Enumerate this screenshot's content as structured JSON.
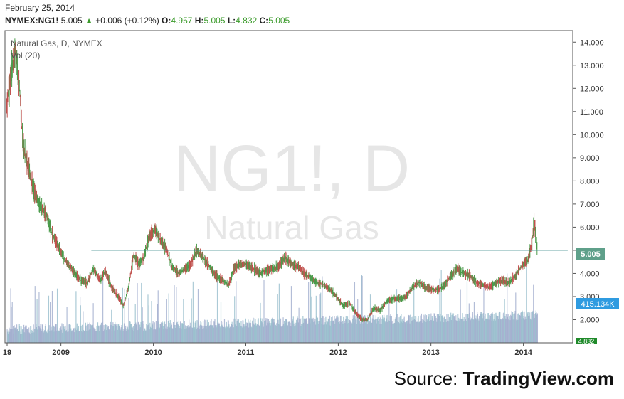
{
  "header": {
    "date": "February 25, 2014",
    "symbol": "NYMEX:NG1!",
    "last": "5.005",
    "change": "+0.006 (+0.12%)",
    "open_label": "O:",
    "open": "4.957",
    "high_label": "H:",
    "high": "5.005",
    "low_label": "L:",
    "low": "4.832",
    "close_label": "C:",
    "close": "5.005",
    "colors": {
      "up": "#3a9a2a"
    }
  },
  "chart_data": {
    "type": "candlestick",
    "title": "Natural Gas, D, NYMEX",
    "indicator_label": "Vol (20)",
    "watermark_symbol": "NG1!, D",
    "watermark_name": "Natural Gas",
    "y_ticks": [
      "2.000",
      "3.000",
      "4.000",
      "5.000",
      "6.000",
      "7.000",
      "8.000",
      "9.000",
      "10.000",
      "11.000",
      "12.000",
      "13.000",
      "14.000"
    ],
    "x_ticks": [
      "19",
      "2009",
      "2010",
      "2011",
      "2012",
      "2013",
      "2014"
    ],
    "ylim": [
      1.0,
      14.5
    ],
    "price_path": [
      [
        "2008-06-01",
        11.2
      ],
      [
        "2008-06-20",
        12.8
      ],
      [
        "2008-07-05",
        13.7
      ],
      [
        "2008-07-20",
        12.2
      ],
      [
        "2008-08-05",
        9.5
      ],
      [
        "2008-08-25",
        8.6
      ],
      [
        "2008-09-15",
        7.6
      ],
      [
        "2008-10-10",
        6.9
      ],
      [
        "2008-11-05",
        6.5
      ],
      [
        "2008-12-01",
        5.6
      ],
      [
        "2008-12-25",
        5.1
      ],
      [
        "2009-01-15",
        4.6
      ],
      [
        "2009-02-05",
        4.3
      ],
      [
        "2009-02-25",
        4.0
      ],
      [
        "2009-03-20",
        3.7
      ],
      [
        "2009-04-15",
        3.6
      ],
      [
        "2009-05-10",
        4.2
      ],
      [
        "2009-06-05",
        3.7
      ],
      [
        "2009-06-25",
        4.1
      ],
      [
        "2009-07-20",
        3.4
      ],
      [
        "2009-08-15",
        3.0
      ],
      [
        "2009-09-05",
        2.6
      ],
      [
        "2009-09-25",
        3.4
      ],
      [
        "2009-10-15",
        4.8
      ],
      [
        "2009-11-05",
        4.4
      ],
      [
        "2009-11-25",
        4.7
      ],
      [
        "2009-12-15",
        5.6
      ],
      [
        "2010-01-08",
        5.9
      ],
      [
        "2010-01-30",
        5.4
      ],
      [
        "2010-02-20",
        5.1
      ],
      [
        "2010-03-15",
        4.3
      ],
      [
        "2010-04-10",
        4.0
      ],
      [
        "2010-05-05",
        4.2
      ],
      [
        "2010-05-30",
        4.4
      ],
      [
        "2010-06-20",
        5.0
      ],
      [
        "2010-07-15",
        4.7
      ],
      [
        "2010-08-10",
        4.3
      ],
      [
        "2010-09-05",
        3.9
      ],
      [
        "2010-09-30",
        3.7
      ],
      [
        "2010-10-25",
        3.5
      ],
      [
        "2010-11-15",
        4.2
      ],
      [
        "2010-12-10",
        4.4
      ],
      [
        "2011-01-05",
        4.4
      ],
      [
        "2011-02-01",
        4.2
      ],
      [
        "2011-02-25",
        4.0
      ],
      [
        "2011-03-20",
        4.1
      ],
      [
        "2011-04-15",
        4.2
      ],
      [
        "2011-05-10",
        4.3
      ],
      [
        "2011-06-05",
        4.7
      ],
      [
        "2011-06-30",
        4.4
      ],
      [
        "2011-07-25",
        4.3
      ],
      [
        "2011-08-20",
        4.0
      ],
      [
        "2011-09-15",
        3.8
      ],
      [
        "2011-10-10",
        3.6
      ],
      [
        "2011-11-05",
        3.5
      ],
      [
        "2011-12-01",
        3.3
      ],
      [
        "2011-12-25",
        3.0
      ],
      [
        "2012-01-20",
        2.6
      ],
      [
        "2012-02-15",
        2.7
      ],
      [
        "2012-03-10",
        2.3
      ],
      [
        "2012-04-05",
        2.0
      ],
      [
        "2012-04-25",
        2.0
      ],
      [
        "2012-05-20",
        2.5
      ],
      [
        "2012-06-15",
        2.4
      ],
      [
        "2012-07-10",
        2.8
      ],
      [
        "2012-08-05",
        2.9
      ],
      [
        "2012-09-01",
        2.9
      ],
      [
        "2012-09-25",
        3.0
      ],
      [
        "2012-10-20",
        3.4
      ],
      [
        "2012-11-15",
        3.6
      ],
      [
        "2012-12-10",
        3.4
      ],
      [
        "2013-01-05",
        3.3
      ],
      [
        "2013-02-01",
        3.3
      ],
      [
        "2013-02-25",
        3.5
      ],
      [
        "2013-03-20",
        3.9
      ],
      [
        "2013-04-15",
        4.2
      ],
      [
        "2013-05-10",
        4.0
      ],
      [
        "2013-06-05",
        3.9
      ],
      [
        "2013-06-30",
        3.6
      ],
      [
        "2013-07-25",
        3.5
      ],
      [
        "2013-08-20",
        3.4
      ],
      [
        "2013-09-15",
        3.6
      ],
      [
        "2013-10-10",
        3.7
      ],
      [
        "2013-11-05",
        3.6
      ],
      [
        "2013-11-30",
        3.9
      ],
      [
        "2013-12-25",
        4.3
      ],
      [
        "2014-01-20",
        4.6
      ],
      [
        "2014-02-05",
        5.4
      ],
      [
        "2014-02-12",
        6.3
      ],
      [
        "2014-02-19",
        5.6
      ],
      [
        "2014-02-25",
        5.005
      ]
    ],
    "horizontal_line": {
      "y": 5.0,
      "from": "2009-05-01",
      "to": "2014-06-25"
    },
    "current_price_label": "5.005",
    "volume_label": "415.134K",
    "low_tag": "4.832",
    "grid": false
  },
  "colors": {
    "line": "#3a8a8a",
    "price_tag": "#5fa08a",
    "volume_tag": "#2f9be0",
    "low_tag": "#1f8a2a"
  },
  "source": {
    "label": "Source:",
    "brand": "TradingView.com"
  }
}
